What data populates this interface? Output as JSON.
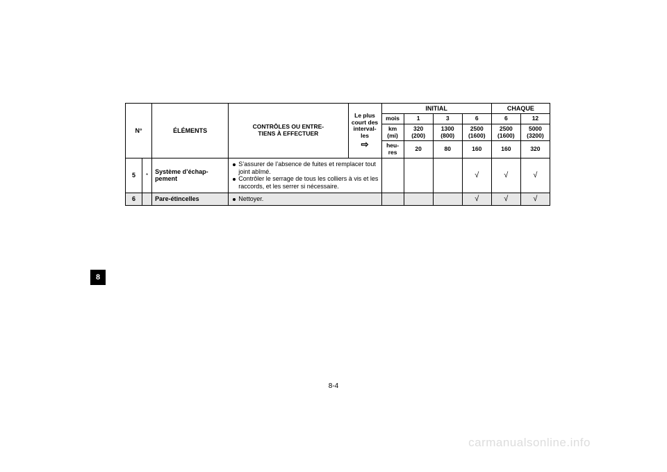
{
  "watermark": "carmanualsonline.info",
  "page_number": "8-4",
  "side_tab": "8",
  "header": {
    "n": "N°",
    "elements": "ÉLÉMENTS",
    "controls": "CONTRÔLES OU ENTRE-\nTIENS À EFFECTUER",
    "interval_top": "Le plus\ncourt des\ninterval-\nles",
    "arrow": "⇨",
    "initial": "INITIAL",
    "chaque": "CHAQUE",
    "mois": "mois",
    "km": "km\n(mi)",
    "heures": "heu-\nres",
    "mois_vals": [
      "1",
      "3",
      "6",
      "6",
      "12"
    ],
    "km_vals": [
      "320\n(200)",
      "1300\n(800)",
      "2500\n(1600)",
      "2500\n(1600)",
      "5000\n(3200)"
    ],
    "h_vals": [
      "20",
      "80",
      "160",
      "160",
      "320"
    ]
  },
  "rows": [
    {
      "num": "5",
      "star": "*",
      "item": "Système d’échap-\npement",
      "desc1": "S’assurer de l’absence de fuites et remplacer tout joint abîmé.",
      "desc2": "Contrôler le serrage de tous les colliers à vis et les raccords, et les serrer si nécessaire.",
      "checks": [
        "",
        "",
        "√",
        "√",
        "√"
      ],
      "grey": false
    },
    {
      "num": "6",
      "star": "",
      "item": "Pare-étincelles",
      "desc1": "Nettoyer.",
      "desc2": "",
      "checks": [
        "",
        "",
        "√",
        "√",
        "√"
      ],
      "grey": true
    }
  ]
}
